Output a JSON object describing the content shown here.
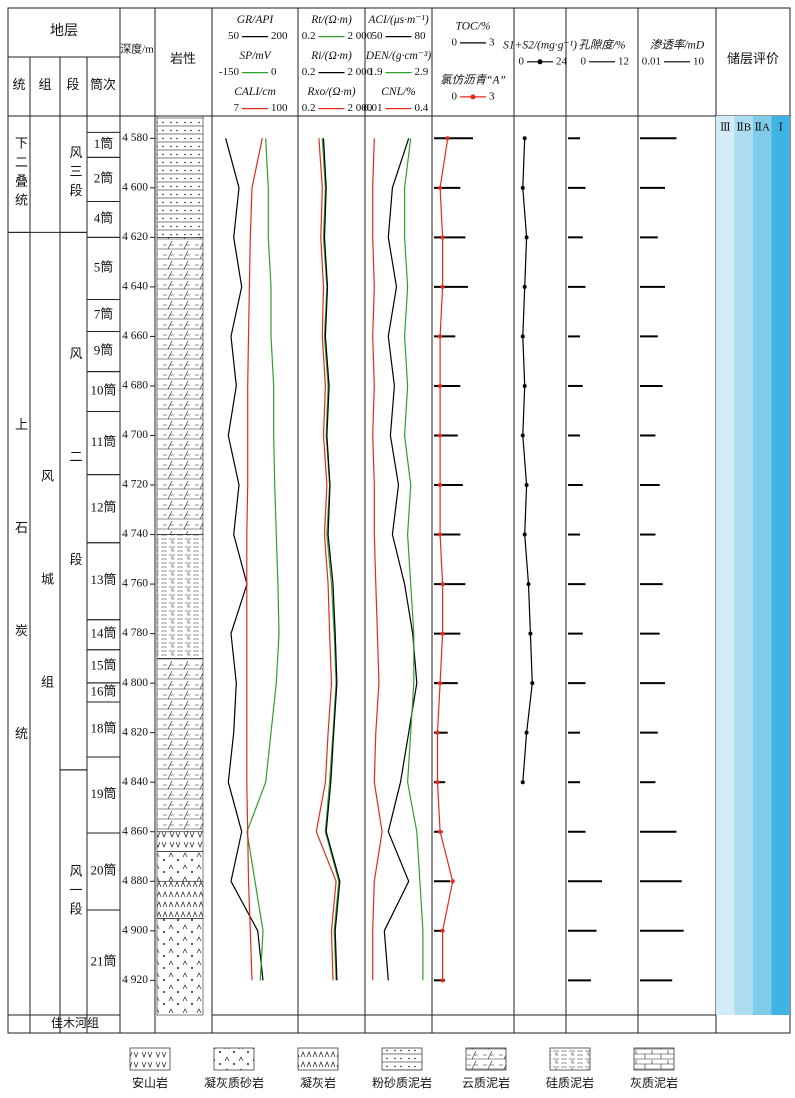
{
  "header": {
    "strata": "地层",
    "system": "统",
    "formation": "组",
    "member": "段",
    "core": "筒次",
    "depth": "深度/m",
    "lithology": "岩性",
    "evaluation": "储层评价"
  },
  "depth_axis": {
    "lim": [
      4571,
      4934
    ],
    "ticks": [
      {
        "value": 4580,
        "label": "4 580"
      },
      {
        "value": 4600,
        "label": "4 600"
      },
      {
        "value": 4620,
        "label": "4 620"
      },
      {
        "value": 4640,
        "label": "4 640"
      },
      {
        "value": 4660,
        "label": "4 660"
      },
      {
        "value": 4680,
        "label": "4 680"
      },
      {
        "value": 4700,
        "label": "4 700"
      },
      {
        "value": 4720,
        "label": "4 720"
      },
      {
        "value": 4740,
        "label": "4 740"
      },
      {
        "value": 4760,
        "label": "4 760"
      },
      {
        "value": 4780,
        "label": "4 780"
      },
      {
        "value": 4800,
        "label": "4 800"
      },
      {
        "value": 4820,
        "label": "4 820"
      },
      {
        "value": 4840,
        "label": "4 840"
      },
      {
        "value": 4860,
        "label": "4 860"
      },
      {
        "value": 4880,
        "label": "4 880"
      },
      {
        "value": 4900,
        "label": "4 900"
      },
      {
        "value": 4920,
        "label": "4 920"
      }
    ]
  },
  "systems": [
    {
      "label": "下二叠统",
      "top": 4571,
      "bottom": 4618
    },
    {
      "label": "上石炭统",
      "top": 4618,
      "bottom": 4934
    }
  ],
  "formations": [
    {
      "label": "风城组",
      "top": 4618,
      "bottom": 4934
    }
  ],
  "members": [
    {
      "label": "风三段",
      "top": 4571,
      "bottom": 4618
    },
    {
      "label": "风二段",
      "top": 4618,
      "bottom": 4835
    },
    {
      "label": "风一段",
      "top": 4835,
      "bottom": 4934
    }
  ],
  "bottom_formation": "佳木河组",
  "cores": [
    {
      "label": "1筒",
      "top": 4577.6,
      "bottom": 4587.7
    },
    {
      "label": "2筒",
      "top": 4587.7,
      "bottom": 4605.5
    },
    {
      "label": "4筒",
      "top": 4605.5,
      "bottom": 4620
    },
    {
      "label": "5筒",
      "top": 4620,
      "bottom": 4645.1
    },
    {
      "label": "7筒",
      "top": 4645.1,
      "bottom": 4658
    },
    {
      "label": "9筒",
      "top": 4658,
      "bottom": 4674.2
    },
    {
      "label": "10筒",
      "top": 4674.2,
      "bottom": 4690.3
    },
    {
      "label": "11筒",
      "top": 4690.3,
      "bottom": 4715.8
    },
    {
      "label": "12筒",
      "top": 4715.8,
      "bottom": 4743.3
    },
    {
      "label": "13筒",
      "top": 4743.3,
      "bottom": 4774.4
    },
    {
      "label": "14筒",
      "top": 4774.4,
      "bottom": 4786.5
    },
    {
      "label": "15筒",
      "top": 4786.5,
      "bottom": 4799.9
    },
    {
      "label": "16筒",
      "top": 4799.9,
      "bottom": 4807.6
    },
    {
      "label": "18筒",
      "top": 4807.6,
      "bottom": 4829.8
    },
    {
      "label": "19筒",
      "top": 4829.8,
      "bottom": 4860.5
    },
    {
      "label": "20筒",
      "top": 4860.5,
      "bottom": 4891.6
    },
    {
      "label": "21筒",
      "top": 4891.6,
      "bottom": 4934
    }
  ],
  "lithology": [
    {
      "type": 3,
      "top": 4571,
      "bottom": 4620
    },
    {
      "type": 4,
      "top": 4620,
      "bottom": 4740
    },
    {
      "type": 5,
      "top": 4740,
      "bottom": 4790
    },
    {
      "type": 4,
      "top": 4790,
      "bottom": 4860
    },
    {
      "type": 0,
      "top": 4860,
      "bottom": 4868
    },
    {
      "type": 1,
      "top": 4868,
      "bottom": 4880
    },
    {
      "type": 2,
      "top": 4880,
      "bottom": 4895
    },
    {
      "type": 1,
      "top": 4895,
      "bottom": 4934
    }
  ],
  "depths": [
    4580,
    4600,
    4620,
    4640,
    4660,
    4680,
    4700,
    4720,
    4740,
    4760,
    4780,
    4800,
    4820,
    4840,
    4860,
    4880,
    4900,
    4920
  ],
  "tracks": [
    {
      "curves": [
        {
          "name": "GR/API",
          "color": "#000000",
          "scale": [
            50,
            200
          ],
          "values": [
            70,
            95,
            85,
            100,
            80,
            90,
            75,
            95,
            85,
            110,
            80,
            90,
            85,
            75,
            100,
            80,
            130,
            140
          ]
        },
        {
          "name": "SP/mV",
          "color": "#2ca02c",
          "scale": [
            -150,
            0
          ],
          "values": [
            -55,
            -50,
            -50,
            -45,
            -45,
            -40,
            -40,
            -38,
            -35,
            -32,
            -30,
            -35,
            -45,
            -55,
            -90,
            -75,
            -60,
            -65
          ]
        },
        {
          "name": "CALI/cm",
          "color": "#e8281e",
          "scale": [
            7,
            100
          ],
          "values": [
            62,
            50,
            48,
            47,
            46,
            45,
            45,
            45,
            44,
            44,
            44,
            44,
            44,
            44,
            45,
            46,
            48,
            50
          ]
        }
      ]
    },
    {
      "curves": [
        {
          "name": "Rt/(Ω·m)",
          "color": "#2ca02c",
          "log": true,
          "scale": [
            0.2,
            {
              "value": 2000,
              "label": "2 000"
            }
          ],
          "values": [
            5,
            8,
            6,
            10,
            7,
            12,
            9,
            15,
            10,
            20,
            30,
            40,
            25,
            15,
            8,
            60,
            30,
            40
          ]
        },
        {
          "name": "Ri/(Ω·m)",
          "color": "#000000",
          "log": true,
          "scale": [
            0.2,
            {
              "value": 2000,
              "label": "2 000"
            }
          ],
          "values": [
            6,
            9,
            7,
            11,
            8,
            14,
            10,
            16,
            12,
            25,
            35,
            45,
            28,
            18,
            9,
            70,
            35,
            45
          ]
        },
        {
          "name": "Rxo/(Ω·m)",
          "color": "#e8281e",
          "log": true,
          "scale": [
            0.2,
            {
              "value": 2000,
              "label": "2 000"
            }
          ],
          "values": [
            3,
            5,
            4,
            6,
            5,
            8,
            6,
            10,
            7,
            12,
            15,
            20,
            12,
            8,
            2,
            40,
            20,
            25
          ]
        }
      ]
    },
    {
      "curves": [
        {
          "name": "ACI/(μs·m⁻¹)",
          "color": "#000000",
          "scale": [
            50,
            80
          ],
          "values": [
            70,
            62,
            60,
            64,
            60,
            63,
            61,
            65,
            62,
            68,
            72,
            74,
            70,
            66,
            60,
            70,
            58,
            60
          ]
        },
        {
          "name": "DEN/(g·cm⁻³)",
          "color": "#2ca02c",
          "scale": [
            1.9,
            2.9
          ],
          "values": [
            2.6,
            2.5,
            2.5,
            2.55,
            2.5,
            2.55,
            2.5,
            2.6,
            2.55,
            2.6,
            2.65,
            2.65,
            2.6,
            2.55,
            2.7,
            2.75,
            2.8,
            2.8
          ]
        },
        {
          "name": "CNL/%",
          "color": "#e8281e",
          "scale": [
            0.01,
            0.4
          ],
          "values": [
            0.05,
            0.04,
            0.04,
            0.05,
            0.04,
            0.05,
            0.04,
            0.05,
            0.05,
            0.06,
            0.07,
            0.08,
            0.06,
            0.05,
            0.1,
            0.05,
            0.04,
            0.04
          ]
        }
      ]
    },
    {
      "curves": [
        {
          "name": "TOC/%",
          "color": "#000000",
          "style": "bar",
          "scale": [
            0,
            3
          ],
          "values": [
            1.5,
            1.0,
            1.2,
            1.3,
            0.8,
            1.0,
            0.9,
            1.1,
            1.0,
            1.2,
            1.0,
            0.9,
            0.5,
            0.4,
            0.3,
            0.6,
            0.3,
            0.4
          ]
        },
        {
          "name": "氯仿沥青“A”",
          "color": "#e8281e",
          "markers": true,
          "scale": [
            0,
            3
          ],
          "values": [
            0.5,
            0.2,
            0.3,
            0.3,
            0.2,
            0.2,
            0.2,
            0.2,
            0.2,
            0.3,
            0.3,
            0.2,
            0.1,
            0.1,
            0.2,
            0.7,
            0.3,
            0.3
          ]
        }
      ]
    },
    {
      "curves": [
        {
          "name": "S1+S2/(mg·g⁻¹)",
          "color": "#000000",
          "markers": true,
          "scale": [
            0,
            24
          ],
          "values": [
            4,
            3,
            5,
            4,
            3,
            4,
            3,
            5,
            4,
            6,
            7,
            8,
            5,
            3,
            null,
            null,
            null,
            null
          ]
        }
      ]
    },
    {
      "curves": [
        {
          "name": "孔隙度/%",
          "color": "#000000",
          "style": "bar",
          "scale": [
            0,
            12
          ],
          "values": [
            2,
            3,
            2.5,
            3,
            2,
            2.5,
            2,
            2.5,
            2,
            3,
            2.5,
            3,
            2,
            2,
            3,
            6,
            5,
            4
          ]
        }
      ]
    },
    {
      "curves": [
        {
          "name": "渗透率/mD",
          "color": "#000000",
          "style": "bar",
          "log": true,
          "scale": [
            0.01,
            10
          ],
          "values": [
            0.3,
            0.1,
            0.05,
            0.1,
            0.05,
            0.08,
            0.04,
            0.06,
            0.04,
            0.08,
            0.06,
            0.1,
            0.05,
            0.04,
            0.3,
            0.5,
            0.6,
            0.2
          ]
        }
      ]
    }
  ],
  "evaluation": {
    "classes": [
      "Ⅲ",
      "ⅡB",
      "ⅡA",
      "Ⅰ"
    ],
    "colors": [
      "#d3ecf7",
      "#acdcf0",
      "#7fcbe8",
      "#3fb4e2"
    ]
  },
  "legend": [
    "安山岩",
    "凝灰质砂岩",
    "凝灰岩",
    "粉砂质泥岩",
    "云质泥岩",
    "硅质泥岩",
    "灰质泥岩"
  ]
}
